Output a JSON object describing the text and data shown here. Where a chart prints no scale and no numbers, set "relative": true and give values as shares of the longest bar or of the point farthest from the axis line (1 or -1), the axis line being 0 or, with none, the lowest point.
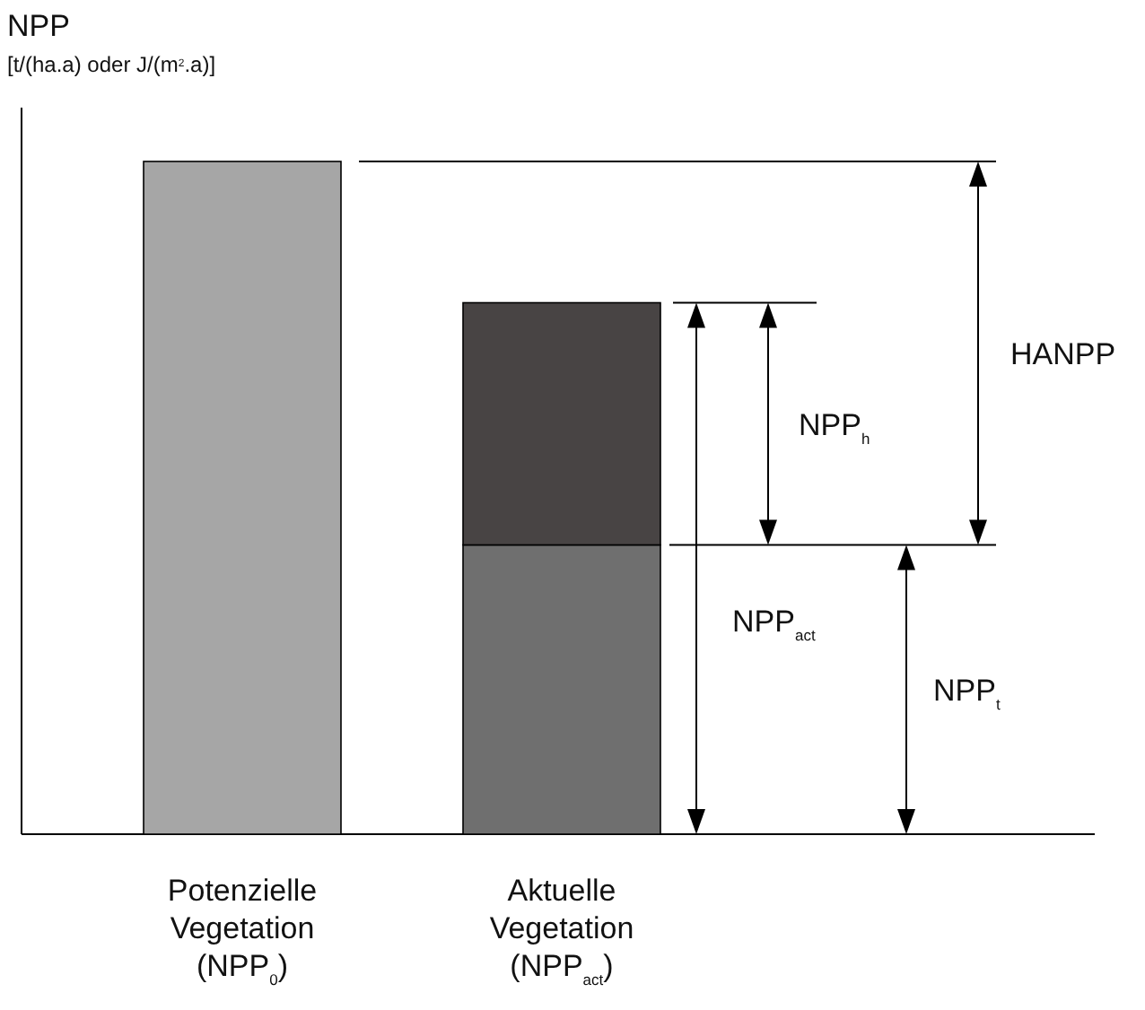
{
  "chart_data": {
    "type": "bar",
    "stacked": true,
    "relative": true,
    "ylabel": "NPP\n[t/(ha.a) oder J/(m$^{2}$.a)]",
    "categories": [
      "Potenzielle Vegetation (NPP$_{0}$)",
      "Aktuelle Vegetation (NPP$_{act}$)"
    ],
    "series": [
      {
        "color": "#a6a6a6",
        "values": [
          1,
          null
        ]
      },
      {
        "color": "#6f6f6f",
        "values": [
          null,
          0.43
        ]
      },
      {
        "color": "#484444",
        "values": [
          null,
          0.36
        ]
      }
    ],
    "ref_lines": [
      {
        "axis": "y",
        "value": 1
      },
      {
        "axis": "y",
        "value": 0.43
      }
    ],
    "annotations": [
      "HANPP",
      "NPP$_{h}$",
      "NPP$_{act}$",
      "NPP$_{t}$"
    ]
  }
}
